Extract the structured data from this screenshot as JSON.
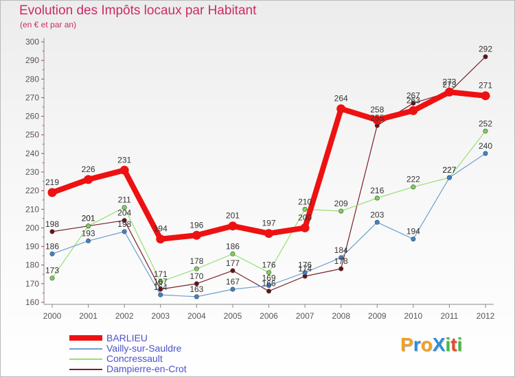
{
  "title": "Evolution des Impôts locaux par Habitant",
  "subtitle": "(en € et par an)",
  "logo": {
    "text": "ProXiti",
    "letters": [
      "P",
      "r",
      "o",
      "X",
      "i",
      "t",
      "i"
    ],
    "colors": [
      "#f0a020",
      "#2e8fd6",
      "#f0a020",
      "#2e8fd6",
      "#49b848",
      "#e74a2c",
      "#49b848"
    ]
  },
  "chart_data": {
    "type": "line",
    "title": "Evolution des Impôts locaux par Habitant",
    "subtitle": "(en € et par an)",
    "xlabel": "",
    "ylabel": "",
    "ylim": [
      160,
      300
    ],
    "yticks": [
      160,
      170,
      180,
      190,
      200,
      210,
      220,
      230,
      240,
      250,
      260,
      270,
      280,
      290,
      300
    ],
    "categories": [
      "2000",
      "2001",
      "2002",
      "2003",
      "2004",
      "2005",
      "2006",
      "2007",
      "2008",
      "2009",
      "2010",
      "2011",
      "2012"
    ],
    "grid": false,
    "legend_position": "bottom-left",
    "series": [
      {
        "name": "Dampierre-en-Crot",
        "color": "#7a1f2a",
        "marker": "#6b0f1a",
        "width": 1.2,
        "radius": 3.2,
        "values": [
          198,
          201,
          204,
          167,
          170,
          177,
          166,
          174,
          178,
          255,
          267,
          273,
          292
        ],
        "labels": [
          "198",
          "201",
          "204",
          "167",
          "170",
          "177",
          "166",
          "174",
          "178",
          "255",
          "267",
          "273",
          "292"
        ]
      },
      {
        "name": "Concressault",
        "color": "#99df72",
        "marker": "#7dd05a",
        "width": 1.2,
        "radius": 3.2,
        "values": [
          173,
          201,
          211,
          171,
          178,
          186,
          176,
          210,
          209,
          216,
          222,
          227,
          252
        ],
        "labels": [
          "173",
          "201",
          "211",
          "171",
          "178",
          "186",
          "176",
          "210",
          "209",
          "216",
          "222",
          "227",
          "252"
        ]
      },
      {
        "name": "Vailly-sur-Sauldre",
        "color": "#6d9fd1",
        "marker": "#3f82c8",
        "width": 1.2,
        "radius": 3.2,
        "values": [
          186,
          193,
          198,
          164,
          163,
          167,
          169,
          176,
          184,
          203,
          194,
          227,
          240
        ],
        "labels": [
          "186",
          "193",
          "198",
          "164",
          "163",
          "167",
          "169",
          "176",
          "184",
          "203",
          "194",
          "227",
          "240"
        ]
      },
      {
        "name": "BARLIEU",
        "color": "#ee1111",
        "marker": "#ee1111",
        "width": 8,
        "radius": 6.5,
        "values": [
          219,
          226,
          231,
          194,
          196,
          201,
          197,
          200,
          264,
          258,
          263,
          273,
          271
        ],
        "labels": [
          "219",
          "226",
          "231",
          "194",
          "196",
          "201",
          "197",
          "200",
          "264",
          "258",
          "263",
          "273",
          "271"
        ]
      }
    ]
  }
}
